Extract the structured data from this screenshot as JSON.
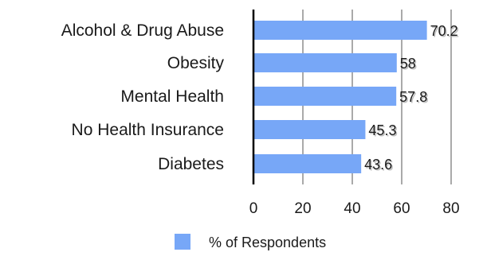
{
  "chart_data": {
    "type": "bar",
    "orientation": "horizontal",
    "categories": [
      "Alcohol & Drug Abuse",
      "Obesity",
      "Mental Health",
      "No Health Insurance",
      "Diabetes"
    ],
    "series": [
      {
        "name": "% of Respondents",
        "values": [
          70.2,
          58,
          57.8,
          45.3,
          43.6
        ]
      }
    ],
    "data_labels": [
      "70.2",
      "58",
      "57.8",
      "45.3",
      "43.6"
    ],
    "xlim": [
      0,
      80
    ],
    "xticks": [
      0,
      20,
      40,
      60,
      80
    ],
    "xtick_labels": [
      "0",
      "20",
      "40",
      "60",
      "80"
    ],
    "grid": true,
    "legend_position": "bottom",
    "colors": {
      "bar": "#77a7f7",
      "grid": "#aaaaaa",
      "axis": "#000000"
    }
  }
}
